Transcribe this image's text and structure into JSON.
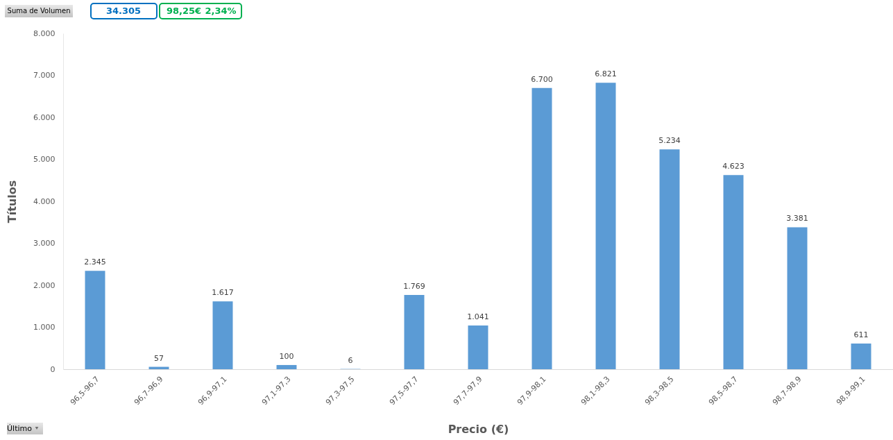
{
  "chart_data": {
    "type": "bar",
    "categories": [
      "96,5-96,7",
      "96,7-96,9",
      "96,9-97,1",
      "97,1-97,3",
      "97,3-97,5",
      "97,5-97,7",
      "97,7-97,9",
      "97,9-98,1",
      "98,1-98,3",
      "98,3-98,5",
      "98,5-98,7",
      "98,7-98,9",
      "98,9-99,1"
    ],
    "values": [
      2345,
      57,
      1617,
      100,
      6,
      1769,
      1041,
      6700,
      6821,
      5234,
      4623,
      3381,
      611
    ],
    "value_labels": [
      "2.345",
      "57",
      "1.617",
      "100",
      "6",
      "1.769",
      "1.041",
      "6.700",
      "6.821",
      "5.234",
      "4.623",
      "3.381",
      "611"
    ],
    "color": "#5b9bd5",
    "xlabel": "Precio (€)",
    "ylabel": "Títulos",
    "ylim": [
      0,
      8000
    ],
    "yticks": [
      0,
      {
        "value": 1000,
        "label": "1.000"
      },
      {
        "value": 2000,
        "label": "2.000"
      },
      {
        "value": 3000,
        "label": "3.000"
      },
      {
        "value": 4000,
        "label": "4.000"
      },
      {
        "value": 5000,
        "label": "5.000"
      },
      {
        "value": 6000,
        "label": "6.000"
      },
      {
        "value": 7000,
        "label": "7.000"
      },
      {
        "value": 8000,
        "label": "8.000"
      }
    ],
    "grid": false,
    "annotations": [
      "Suma de Volumen",
      "34.305",
      "98,25€",
      "2,34%",
      "Último"
    ]
  }
}
